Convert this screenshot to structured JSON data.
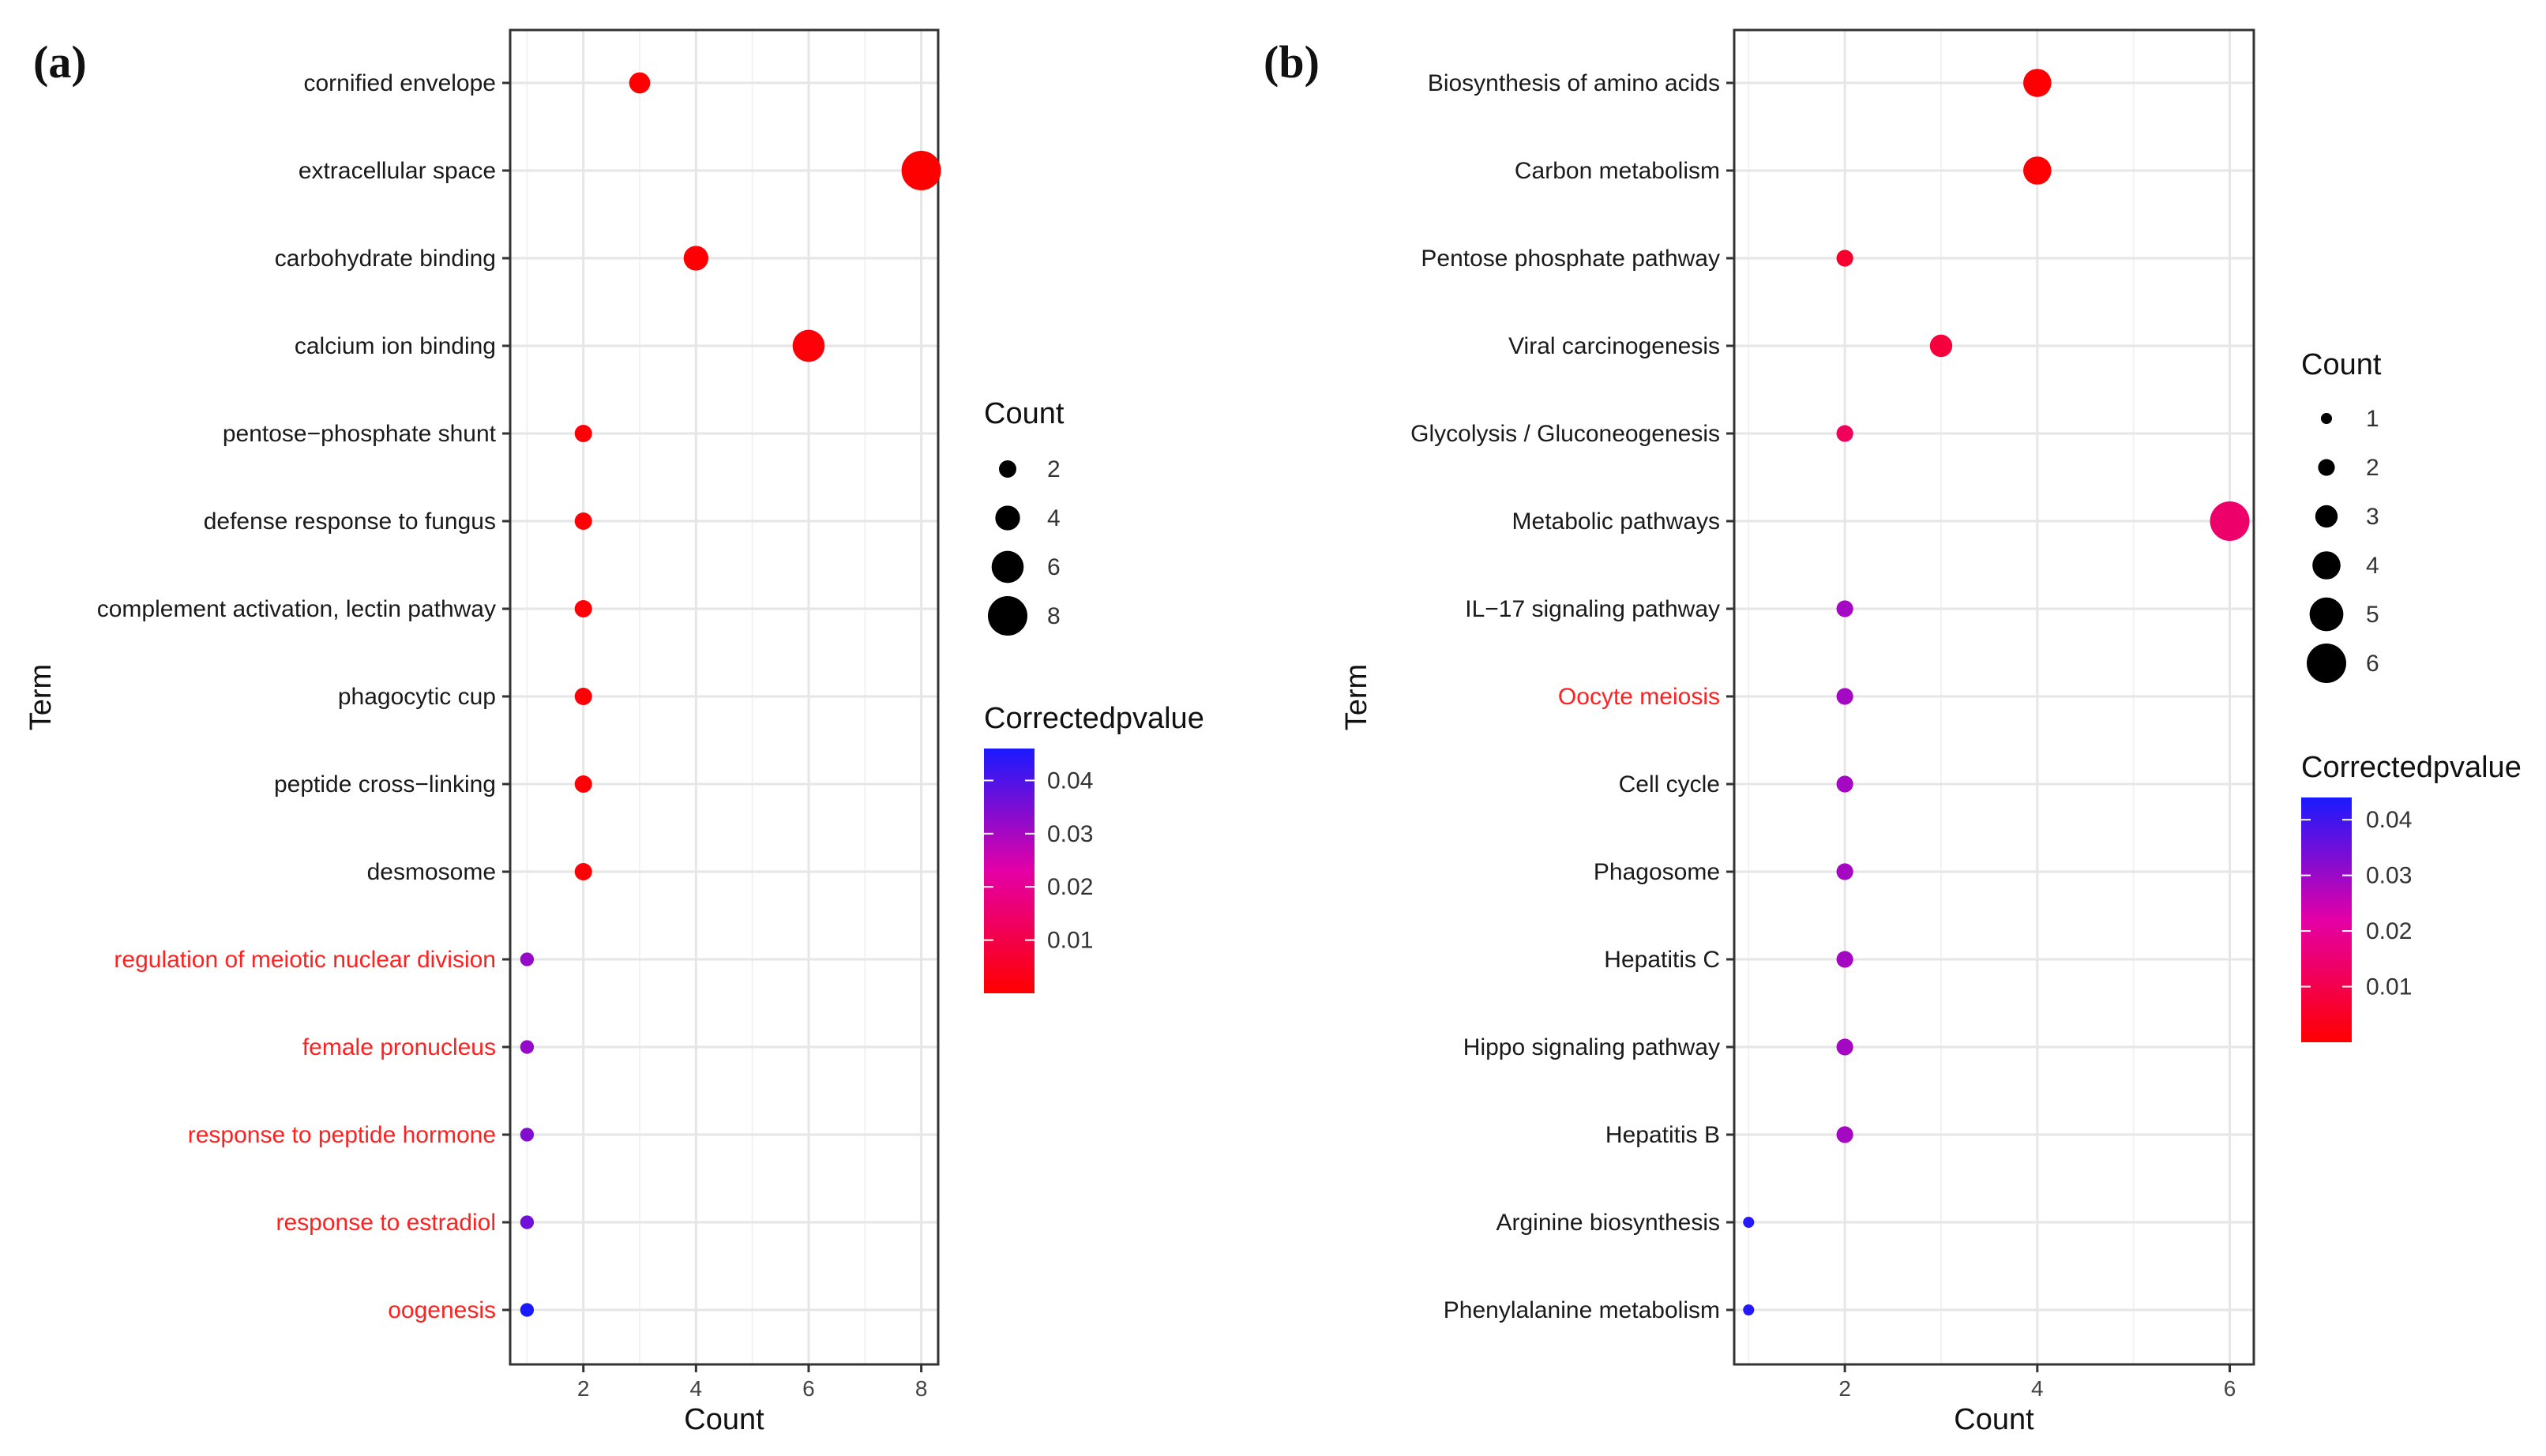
{
  "chart_data": [
    {
      "type": "scatter",
      "panel_label": "(a)",
      "xlabel": "Count",
      "ylabel": "Term",
      "xlim": [
        0.7,
        8.3
      ],
      "xticks": [
        2,
        4,
        6,
        8
      ],
      "grid": true,
      "highlight_color": "#ff2020",
      "terms": [
        {
          "term": "cornified envelope",
          "count": 3,
          "pvalue": 0.0003,
          "highlighted": false
        },
        {
          "term": "extracellular space",
          "count": 8,
          "pvalue": 0.0002,
          "highlighted": false
        },
        {
          "term": "carbohydrate binding",
          "count": 4,
          "pvalue": 0.0006,
          "highlighted": false
        },
        {
          "term": "calcium ion binding",
          "count": 6,
          "pvalue": 0.001,
          "highlighted": false
        },
        {
          "term": "pentose−phosphate shunt",
          "count": 2,
          "pvalue": 0.0008,
          "highlighted": false
        },
        {
          "term": "defense response to fungus",
          "count": 2,
          "pvalue": 0.0008,
          "highlighted": false
        },
        {
          "term": "complement activation, lectin pathway",
          "count": 2,
          "pvalue": 0.0008,
          "highlighted": false
        },
        {
          "term": "phagocytic cup",
          "count": 2,
          "pvalue": 0.0008,
          "highlighted": false
        },
        {
          "term": "peptide cross−linking",
          "count": 2,
          "pvalue": 0.0008,
          "highlighted": false
        },
        {
          "term": "desmosome",
          "count": 2,
          "pvalue": 0.001,
          "highlighted": false
        },
        {
          "term": "regulation of meiotic nuclear division",
          "count": 1,
          "pvalue": 0.032,
          "highlighted": true
        },
        {
          "term": "female pronucleus",
          "count": 1,
          "pvalue": 0.032,
          "highlighted": true
        },
        {
          "term": "response to peptide hormone",
          "count": 1,
          "pvalue": 0.034,
          "highlighted": true
        },
        {
          "term": "response to estradiol",
          "count": 1,
          "pvalue": 0.036,
          "highlighted": true
        },
        {
          "term": "oogenesis",
          "count": 1,
          "pvalue": 0.046,
          "highlighted": true
        }
      ],
      "size_legend": {
        "title": "Count",
        "values": [
          2,
          4,
          6,
          8
        ]
      },
      "color_legend": {
        "title": "Correctedpvalue",
        "min": 0.0,
        "max": 0.046,
        "ticks": [
          0.04,
          0.03,
          0.02,
          0.01
        ],
        "low_color": "#ff0000",
        "mid_color": "#e400a6",
        "high_color": "#1a1aff"
      }
    },
    {
      "type": "scatter",
      "panel_label": "(b)",
      "xlabel": "Count",
      "ylabel": "Term",
      "xlim": [
        0.85,
        6.25
      ],
      "xticks": [
        2,
        4,
        6
      ],
      "grid": true,
      "highlight_color": "#ff2020",
      "terms": [
        {
          "term": "Biosynthesis of amino acids",
          "count": 4,
          "pvalue": 0.0005,
          "highlighted": false
        },
        {
          "term": "Carbon metabolism",
          "count": 4,
          "pvalue": 0.0005,
          "highlighted": false
        },
        {
          "term": "Pentose phosphate pathway",
          "count": 2,
          "pvalue": 0.006,
          "highlighted": false
        },
        {
          "term": "Viral carcinogenesis",
          "count": 3,
          "pvalue": 0.008,
          "highlighted": false
        },
        {
          "term": "Glycolysis / Gluconeogenesis",
          "count": 2,
          "pvalue": 0.012,
          "highlighted": false
        },
        {
          "term": "Metabolic pathways",
          "count": 6,
          "pvalue": 0.014,
          "highlighted": false
        },
        {
          "term": "IL−17 signaling pathway",
          "count": 2,
          "pvalue": 0.029,
          "highlighted": false
        },
        {
          "term": "Oocyte meiosis",
          "count": 2,
          "pvalue": 0.029,
          "highlighted": true
        },
        {
          "term": "Cell cycle",
          "count": 2,
          "pvalue": 0.029,
          "highlighted": false
        },
        {
          "term": "Phagosome",
          "count": 2,
          "pvalue": 0.029,
          "highlighted": false
        },
        {
          "term": "Hepatitis C",
          "count": 2,
          "pvalue": 0.029,
          "highlighted": false
        },
        {
          "term": "Hippo signaling pathway",
          "count": 2,
          "pvalue": 0.029,
          "highlighted": false
        },
        {
          "term": "Hepatitis B",
          "count": 2,
          "pvalue": 0.029,
          "highlighted": false
        },
        {
          "term": "Arginine biosynthesis",
          "count": 1,
          "pvalue": 0.043,
          "highlighted": false
        },
        {
          "term": "Phenylalanine metabolism",
          "count": 1,
          "pvalue": 0.043,
          "highlighted": false
        }
      ],
      "size_legend": {
        "title": "Count",
        "values": [
          1,
          2,
          3,
          4,
          5,
          6
        ]
      },
      "color_legend": {
        "title": "Correctedpvalue",
        "min": 0.0,
        "max": 0.044,
        "ticks": [
          0.04,
          0.03,
          0.02,
          0.01
        ],
        "low_color": "#ff0000",
        "mid_color": "#e400a6",
        "high_color": "#1a1aff"
      }
    }
  ]
}
